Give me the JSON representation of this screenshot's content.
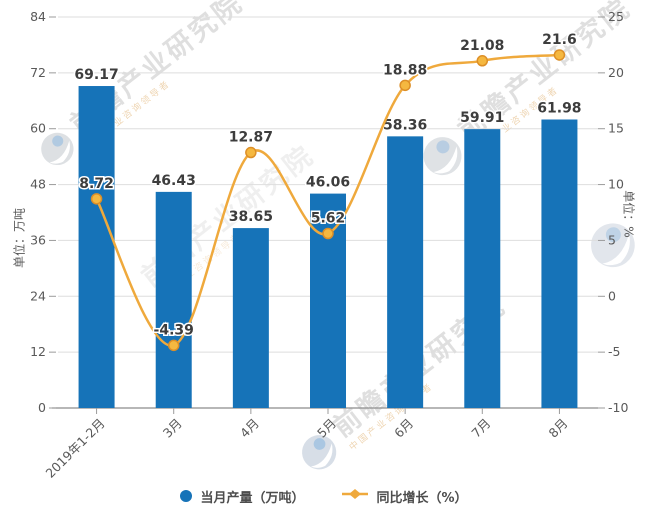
{
  "watermark": {
    "brand": "前瞻产业研究院",
    "tagline": "中国产业咨询领导者"
  },
  "axes": {
    "left": {
      "name": "单位：万吨"
    },
    "right": {
      "name": "单位：%"
    }
  },
  "chart_data": {
    "type": "bar+line combo",
    "title": "",
    "categories": [
      "2019年1-2月",
      "3月",
      "4月",
      "5月",
      "6月",
      "7月",
      "8月"
    ],
    "series": [
      {
        "name": "当月产量（万吨）",
        "type": "bar",
        "y_axis": "left",
        "color": "#1673B8",
        "values": [
          69.17,
          46.43,
          38.65,
          46.06,
          58.36,
          59.91,
          61.98
        ],
        "labels": [
          "69.17",
          "46.43",
          "38.65",
          "46.06",
          "58.36",
          "59.91",
          "61.98"
        ]
      },
      {
        "name": "同比增长（%）",
        "type": "line",
        "y_axis": "right",
        "color": "#EFA93C",
        "marker_fill": "#F5B840",
        "marker_stroke": "#DD8F27",
        "values": [
          8.72,
          -4.39,
          12.87,
          5.62,
          18.88,
          21.08,
          21.6
        ],
        "labels": [
          "8.72",
          "-4.39",
          "12.87",
          "5.62",
          "18.88",
          "21.08",
          "21.6"
        ]
      }
    ],
    "left_axis": {
      "name": "单位：万吨",
      "min": 0,
      "max": 84,
      "ticks": [
        0,
        12,
        24,
        36,
        48,
        60,
        72,
        84
      ]
    },
    "right_axis": {
      "name": "单位：%",
      "min": -10,
      "max": 25,
      "ticks": [
        -10,
        -5,
        0,
        5,
        10,
        15,
        20,
        25
      ]
    },
    "grid": true,
    "legend_position": "bottom",
    "label_color": "#3d3d3d",
    "tick_color": "#595959",
    "grid_color": "#dedede",
    "axisline_color": "#8c8c8c"
  }
}
